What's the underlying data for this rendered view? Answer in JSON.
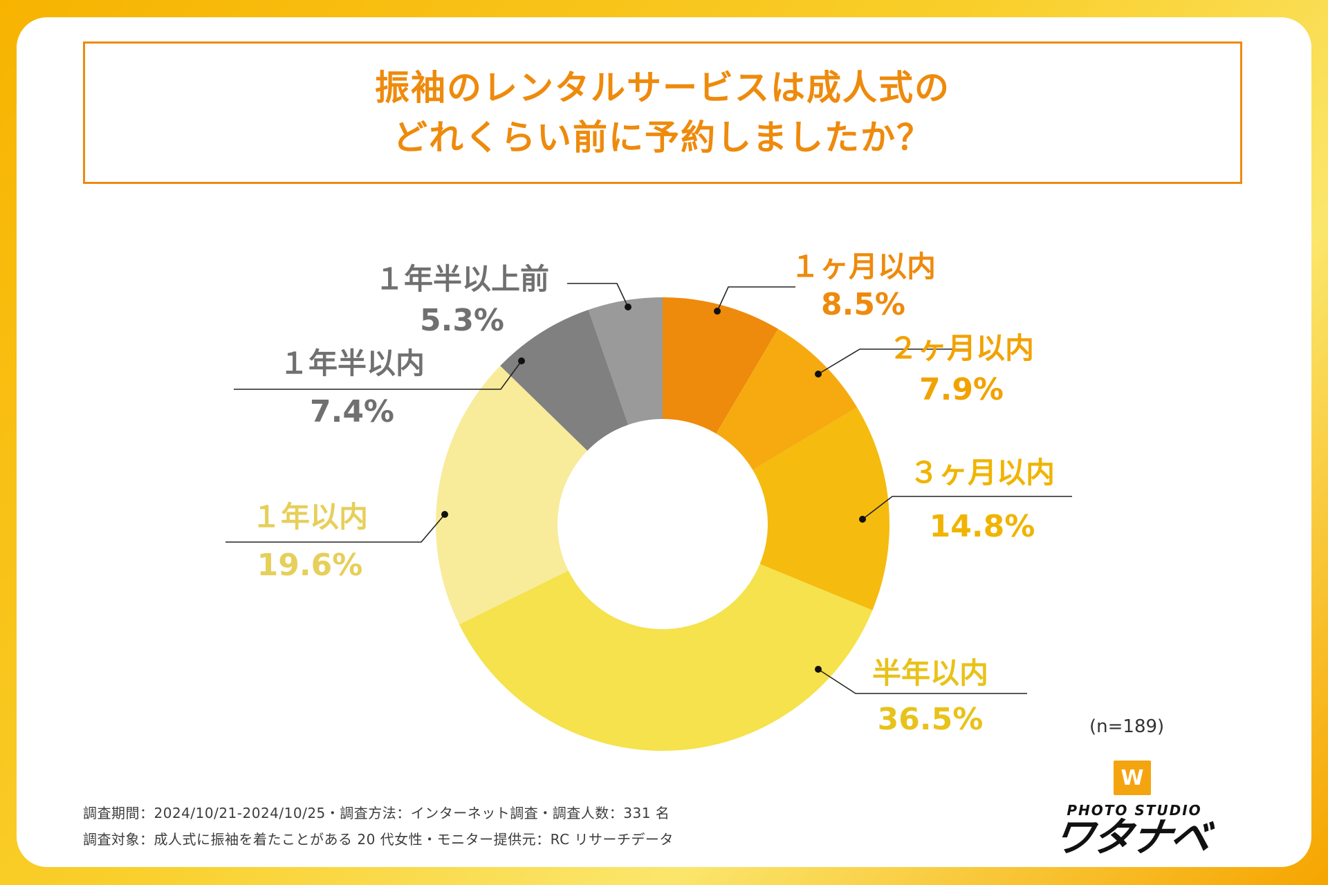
{
  "title": {
    "line1": "振袖のレンタルサービスは成人式の",
    "line2": "どれくらい前に予約しましたか？"
  },
  "chart_data": {
    "type": "pie",
    "style": "donut",
    "title": "振袖のレンタルサービスは成人式のどれくらい前に予約しましたか？",
    "slices": [
      {
        "label": "１ヶ月以内",
        "value": 8.5,
        "display": "8.5%",
        "color": "#ee8a0c",
        "label_color": "#ee8a0c"
      },
      {
        "label": "２ヶ月以内",
        "value": 7.9,
        "display": "7.9%",
        "color": "#f6aa10",
        "label_color": "#f2a200"
      },
      {
        "label": "３ヶ月以内",
        "value": 14.8,
        "display": "14.8%",
        "color": "#f5bb0e",
        "label_color": "#f0b400"
      },
      {
        "label": "半年以内",
        "value": 36.5,
        "display": "36.5%",
        "color": "#f5e24c",
        "label_color": "#e8c21a"
      },
      {
        "label": "１年以内",
        "value": 19.6,
        "display": "19.6%",
        "color": "#f8eb9a",
        "label_color": "#e6cf5a"
      },
      {
        "label": "１年半以内",
        "value": 7.4,
        "display": "7.4%",
        "color": "#808080",
        "label_color": "#707070"
      },
      {
        "label": "１年半以上前",
        "value": 5.3,
        "display": "5.3%",
        "color": "#9a9a9a",
        "label_color": "#707070"
      }
    ],
    "sample_size": "(n=189)"
  },
  "footnotes": {
    "line1": "調査期間：2024/10/21-2024/10/25・調査方法：インターネット調査・調査人数：331 名",
    "line2": "調査対象：成人式に振袖を着たことがある 20 代女性・モニター提供元：RC リサーチデータ"
  },
  "logo": {
    "mark": "W",
    "small": "PHOTO STUDIO",
    "big": "ワタナベ"
  }
}
